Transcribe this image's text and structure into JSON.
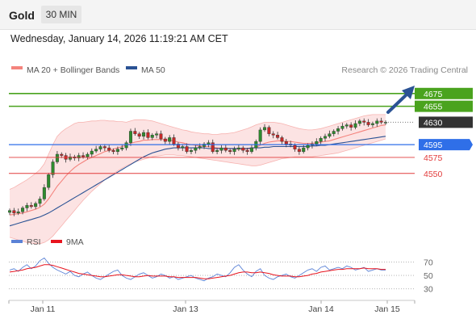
{
  "header": {
    "symbol": "Gold",
    "timeframe": "30 MIN"
  },
  "datetime": "Wednesday, January 14, 2026 11:19:21 AM CET",
  "chart_data": {
    "type": "candlestick",
    "legend": [
      {
        "label": "MA 20 + Bollinger Bands",
        "color": "#f4837d"
      },
      {
        "label": "MA 50",
        "color": "#2a5294"
      }
    ],
    "credit": "Research © 2026 Trading Central",
    "x_ticks": [
      "Jan 11",
      "Jan 13",
      "Jan 14",
      "Jan 15"
    ],
    "y_range": [
      4460,
      4700
    ],
    "levels": [
      {
        "value": 4675,
        "label": "4675",
        "color": "#4aa31e",
        "type": "resistance"
      },
      {
        "value": 4655,
        "label": "4655",
        "color": "#4aa31e",
        "type": "resistance"
      },
      {
        "value": 4630,
        "label": "4630",
        "color": "#333333",
        "type": "current"
      },
      {
        "value": 4595,
        "label": "4595",
        "color": "#2f6fe8",
        "type": "pivot"
      },
      {
        "value": 4575,
        "label": "4575",
        "color": "#e23b3b",
        "type": "support"
      },
      {
        "value": 4550,
        "label": "4550",
        "color": "#e23b3b",
        "type": "support"
      }
    ],
    "close": [
      4492,
      4488,
      4490,
      4496,
      4500,
      4498,
      4503,
      4510,
      4528,
      4548,
      4568,
      4580,
      4578,
      4572,
      4576,
      4574,
      4578,
      4576,
      4580,
      4585,
      4588,
      4592,
      4590,
      4586,
      4584,
      4588,
      4590,
      4598,
      4616,
      4612,
      4608,
      4614,
      4606,
      4610,
      4612,
      4604,
      4600,
      4606,
      4596,
      4590,
      4592,
      4584,
      4586,
      4590,
      4592,
      4596,
      4598,
      4584,
      4586,
      4590,
      4586,
      4584,
      4588,
      4590,
      4586,
      4584,
      4590,
      4600,
      4618,
      4622,
      4612,
      4610,
      4606,
      4600,
      4596,
      4594,
      4588,
      4584,
      4590,
      4594,
      4596,
      4600,
      4605,
      4608,
      4612,
      4616,
      4620,
      4624,
      4626,
      4622,
      4628,
      4632,
      4630,
      4626,
      4628,
      4632,
      4630,
      4630
    ],
    "ma20": [
      4485,
      4486,
      4487,
      4488,
      4490,
      4492,
      4494,
      4497,
      4502,
      4510,
      4520,
      4530,
      4538,
      4546,
      4553,
      4559,
      4564,
      4568,
      4572,
      4575,
      4578,
      4581,
      4584,
      4586,
      4588,
      4590,
      4592,
      4594,
      4597,
      4599,
      4600,
      4602,
      4602,
      4603,
      4603,
      4603,
      4603,
      4602,
      4601,
      4599,
      4598,
      4596,
      4595,
      4594,
      4593,
      4592,
      4592,
      4591,
      4590,
      4589,
      4589,
      4589,
      4588,
      4588,
      4588,
      4588,
      4589,
      4591,
      4594,
      4597,
      4599,
      4600,
      4601,
      4601,
      4600,
      4600,
      4599,
      4598,
      4597,
      4597,
      4597,
      4598,
      4599,
      4600,
      4601,
      4603,
      4605,
      4607,
      4609,
      4611,
      4613,
      4615,
      4617,
      4619,
      4621,
      4623,
      4625,
      4626
    ],
    "bb_upper": [
      4525,
      4528,
      4532,
      4536,
      4540,
      4545,
      4550,
      4556,
      4565,
      4580,
      4595,
      4608,
      4615,
      4620,
      4624,
      4628,
      4630,
      4630,
      4631,
      4632,
      4632,
      4633,
      4633,
      4632,
      4632,
      4631,
      4631,
      4630,
      4632,
      4634,
      4634,
      4634,
      4633,
      4632,
      4630,
      4628,
      4626,
      4624,
      4622,
      4620,
      4618,
      4617,
      4615,
      4614,
      4613,
      4612,
      4612,
      4611,
      4611,
      4612,
      4612,
      4613,
      4614,
      4616,
      4618,
      4620,
      4623,
      4626,
      4628,
      4630,
      4630,
      4630,
      4629,
      4628,
      4626,
      4624,
      4622,
      4620,
      4619,
      4618,
      4618,
      4619,
      4620,
      4622,
      4624,
      4626,
      4628,
      4630,
      4632,
      4634,
      4636,
      4638,
      4640,
      4641,
      4642,
      4642,
      4642,
      4642
    ],
    "bb_lower": [
      4450,
      4448,
      4446,
      4444,
      4442,
      4441,
      4440,
      4440,
      4442,
      4446,
      4452,
      4460,
      4468,
      4476,
      4484,
      4492,
      4500,
      4508,
      4515,
      4522,
      4528,
      4534,
      4540,
      4545,
      4550,
      4554,
      4558,
      4562,
      4565,
      4568,
      4570,
      4572,
      4574,
      4576,
      4577,
      4578,
      4579,
      4579,
      4579,
      4578,
      4578,
      4577,
      4576,
      4575,
      4574,
      4573,
      4572,
      4571,
      4570,
      4569,
      4568,
      4567,
      4566,
      4565,
      4564,
      4563,
      4562,
      4562,
      4563,
      4565,
      4567,
      4569,
      4571,
      4573,
      4574,
      4575,
      4576,
      4576,
      4576,
      4576,
      4576,
      4577,
      4578,
      4579,
      4580,
      4581,
      4582,
      4584,
      4586,
      4588,
      4590,
      4592,
      4594,
      4596,
      4598,
      4600,
      4602,
      4604
    ],
    "ma50": [
      4468,
      4470,
      4472,
      4474,
      4476,
      4478,
      4480,
      4482,
      4485,
      4488,
      4492,
      4496,
      4500,
      4504,
      4508,
      4512,
      4516,
      4520,
      4524,
      4528,
      4532,
      4536,
      4540,
      4544,
      4548,
      4552,
      4556,
      4560,
      4564,
      4568,
      4572,
      4576,
      4579,
      4582,
      4584,
      4586,
      4588,
      4589,
      4590,
      4590,
      4590,
      4590,
      4590,
      4590,
      4590,
      4590,
      4589,
      4589,
      4589,
      4589,
      4589,
      4589,
      4589,
      4589,
      4589,
      4589,
      4590,
      4590,
      4590,
      4591,
      4591,
      4592,
      4592,
      4592,
      4592,
      4592,
      4592,
      4592,
      4592,
      4592,
      4593,
      4593,
      4594,
      4594,
      4595,
      4596,
      4597,
      4598,
      4599,
      4600,
      4601,
      4602,
      4603,
      4604,
      4605,
      4606,
      4607,
      4608
    ],
    "rsi_panel": {
      "legend": [
        {
          "label": "RSI",
          "color": "#5b82d6"
        },
        {
          "label": "9MA",
          "color": "#e8141e"
        }
      ],
      "levels": [
        70,
        50,
        30
      ],
      "y_range": [
        20,
        85
      ],
      "rsi": [
        58,
        60,
        56,
        62,
        66,
        60,
        64,
        72,
        76,
        68,
        62,
        58,
        55,
        52,
        56,
        50,
        48,
        52,
        55,
        50,
        46,
        44,
        48,
        52,
        56,
        58,
        50,
        46,
        44,
        48,
        52,
        54,
        50,
        46,
        48,
        52,
        50,
        46,
        48,
        44,
        46,
        48,
        50,
        46,
        44,
        42,
        46,
        48,
        52,
        50,
        48,
        54,
        62,
        66,
        58,
        52,
        48,
        56,
        60,
        50,
        46,
        44,
        48,
        50,
        52,
        48,
        46,
        50,
        54,
        58,
        60,
        56,
        62,
        64,
        58,
        60,
        62,
        60,
        64,
        62,
        58,
        60,
        62,
        56,
        58,
        60,
        58,
        58
      ],
      "ma9": [
        55,
        56,
        57,
        58,
        60,
        61,
        62,
        64,
        66,
        66,
        65,
        63,
        61,
        59,
        57,
        55,
        53,
        52,
        51,
        50,
        49,
        48,
        48,
        49,
        50,
        51,
        51,
        50,
        49,
        48,
        48,
        49,
        50,
        49,
        49,
        49,
        49,
        48,
        48,
        47,
        47,
        47,
        47,
        47,
        46,
        45,
        45,
        46,
        47,
        48,
        49,
        50,
        52,
        54,
        55,
        55,
        54,
        54,
        55,
        54,
        53,
        51,
        50,
        49,
        49,
        49,
        48,
        48,
        49,
        50,
        52,
        53,
        55,
        56,
        57,
        58,
        59,
        59,
        60,
        60,
        60,
        60,
        61,
        60,
        60,
        60,
        59,
        59
      ]
    }
  }
}
